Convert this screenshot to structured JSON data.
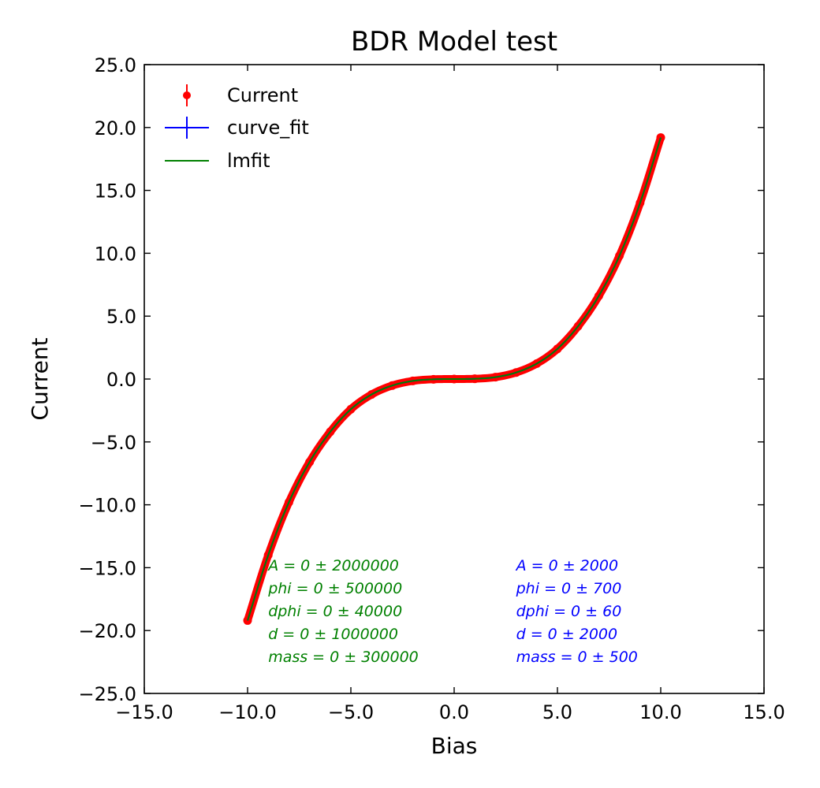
{
  "chart_data": {
    "type": "line",
    "title": "BDR Model test",
    "xlabel": "Bias",
    "ylabel": "Current",
    "xlim": [
      -15.0,
      15.0
    ],
    "ylim": [
      -25.0,
      25.0
    ],
    "xticks": [
      -15.0,
      -10.0,
      -5.0,
      0.0,
      5.0,
      10.0,
      15.0
    ],
    "yticks": [
      -25.0,
      -20.0,
      -15.0,
      -10.0,
      -5.0,
      0.0,
      5.0,
      10.0,
      15.0,
      20.0,
      25.0
    ],
    "xtick_labels": [
      "−15.0",
      "−10.0",
      "−5.0",
      "0.0",
      "5.0",
      "10.0",
      "15.0"
    ],
    "ytick_labels": [
      "−25.0",
      "−20.0",
      "−15.0",
      "−10.0",
      "−5.0",
      "0.0",
      "5.0",
      "10.0",
      "15.0",
      "20.0",
      "25.0"
    ],
    "grid": false,
    "legend_position": "top-left",
    "x": [
      -10.0,
      -9.0,
      -8.0,
      -7.0,
      -6.0,
      -5.0,
      -4.0,
      -3.0,
      -2.0,
      -1.0,
      0.0,
      1.0,
      2.0,
      3.0,
      4.0,
      5.0,
      6.0,
      7.0,
      8.0,
      9.0,
      10.0
    ],
    "series": [
      {
        "name": "Current",
        "style": "errorbar-points",
        "color": "#ff0000",
        "values": [
          -19.2,
          -14.0,
          -9.8,
          -6.6,
          -4.2,
          -2.4,
          -1.23,
          -0.52,
          -0.15,
          -0.02,
          0.0,
          0.02,
          0.15,
          0.52,
          1.23,
          2.4,
          4.2,
          6.6,
          9.8,
          14.0,
          19.2
        ]
      },
      {
        "name": "curve_fit",
        "style": "errorbar-line",
        "color": "#0000ff",
        "values": [
          -19.2,
          -14.0,
          -9.8,
          -6.6,
          -4.2,
          -2.4,
          -1.23,
          -0.52,
          -0.15,
          -0.02,
          0.0,
          0.02,
          0.15,
          0.52,
          1.23,
          2.4,
          4.2,
          6.6,
          9.8,
          14.0,
          19.2
        ]
      },
      {
        "name": "lmfit",
        "style": "line",
        "color": "#008000",
        "values": [
          -19.2,
          -14.0,
          -9.8,
          -6.6,
          -4.2,
          -2.4,
          -1.23,
          -0.52,
          -0.15,
          -0.02,
          0.0,
          0.02,
          0.15,
          0.52,
          1.23,
          2.4,
          4.2,
          6.6,
          9.8,
          14.0,
          19.2
        ]
      }
    ],
    "annotations": [
      {
        "color": "#008000",
        "lines": [
          "A = 0 ± 2000000",
          "phi = 0 ± 500000",
          "dphi = 0 ± 40000",
          "d = 0 ± 1000000",
          "mass = 0 ± 300000"
        ]
      },
      {
        "color": "#0000ff",
        "lines": [
          "A = 0 ± 2000",
          "phi = 0 ± 700",
          "dphi = 0 ± 60",
          "d = 0 ± 2000",
          "mass = 0 ± 500"
        ]
      }
    ]
  }
}
